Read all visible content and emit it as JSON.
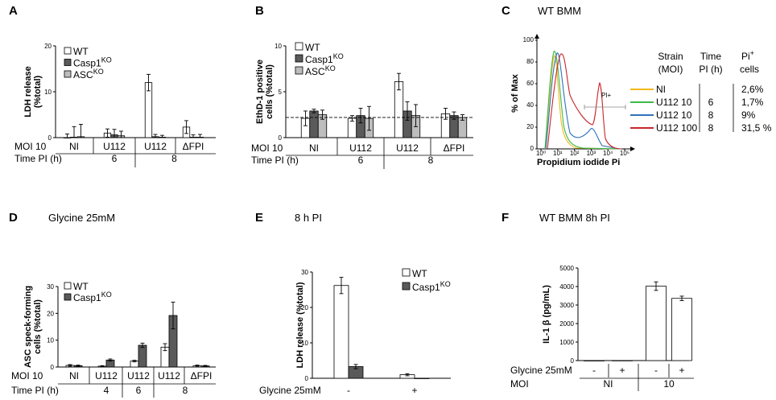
{
  "figure": {
    "panels": [
      {
        "id": "A",
        "letter": "A",
        "title": ""
      },
      {
        "id": "B",
        "letter": "B",
        "title": ""
      },
      {
        "id": "C",
        "letter": "C",
        "title": "WT BMM"
      },
      {
        "id": "D",
        "letter": "D",
        "title": "Glycine 25mM"
      },
      {
        "id": "E",
        "letter": "E",
        "title": "8 h PI"
      },
      {
        "id": "F",
        "letter": "F",
        "title": "WT BMM 8h PI"
      }
    ]
  },
  "colors": {
    "wt": "#ffffff",
    "casp": "#5a5a5a",
    "asc": "#bdbdbd",
    "ni": "#f2b91c",
    "u112_10_6": "#3cba4a",
    "u112_10_8": "#2f72b8",
    "u112_100_8": "#c8262b"
  },
  "chart_data": [
    {
      "panel": "A",
      "type": "bar",
      "ylabel": "LDH release (%total)",
      "ylim": [
        0,
        20
      ],
      "yticks": [
        0,
        10,
        20
      ],
      "row_labels": [
        "MOI 10",
        "Time PI (h)"
      ],
      "categories": [
        "NI",
        "U112",
        "U112",
        "ΔFPI"
      ],
      "time_groups": [
        {
          "label": "6",
          "span": [
            1,
            1
          ]
        },
        {
          "label": "8",
          "span": [
            2,
            3
          ]
        }
      ],
      "series": [
        {
          "name": "WT",
          "key": "wt",
          "values": [
            0,
            1,
            12,
            2.3
          ],
          "errors": [
            0.8,
            0.9,
            1.8,
            1.4
          ]
        },
        {
          "name": "Casp1",
          "sup": "KO",
          "key": "casp",
          "values": [
            0.1,
            0.6,
            0.2,
            0.1
          ],
          "errors": [
            2.3,
            1.2,
            0.5,
            0.5
          ]
        },
        {
          "name": "ASC",
          "sup": "KO",
          "key": "asc",
          "values": [
            0.2,
            0.4,
            0.1,
            0.1
          ],
          "errors": [
            2.7,
            1.0,
            0.4,
            0.6
          ]
        }
      ]
    },
    {
      "panel": "B",
      "type": "bar",
      "ylabel": "EthD-1 positive cells (%total)",
      "ylim": [
        0,
        10
      ],
      "yticks": [
        0,
        5,
        10
      ],
      "row_labels": [
        "MOI 10",
        "Time PI (h)"
      ],
      "categories": [
        "NI",
        "U112",
        "U112",
        "ΔFPI"
      ],
      "time_groups": [
        {
          "label": "6",
          "span": [
            1,
            1
          ]
        },
        {
          "label": "8",
          "span": [
            2,
            3
          ]
        }
      ],
      "dashed_line": 2.2,
      "series": [
        {
          "name": "WT",
          "key": "wt",
          "values": [
            2.1,
            2.1,
            6.1,
            2.6
          ],
          "errors": [
            0.8,
            0.3,
            0.9,
            0.6
          ]
        },
        {
          "name": "Casp1",
          "sup": "KO",
          "key": "casp",
          "values": [
            2.9,
            2.4,
            2.9,
            2.4
          ],
          "errors": [
            0.2,
            0.8,
            1.0,
            0.4
          ]
        },
        {
          "name": "ASC",
          "sup": "KO",
          "key": "asc",
          "values": [
            2.5,
            2.1,
            2.4,
            2.2
          ],
          "errors": [
            0.5,
            1.3,
            1.2,
            0.3
          ]
        }
      ]
    },
    {
      "panel": "C",
      "type": "line",
      "xlabel": "Propidium iodide Pi",
      "ylabel": "% of Max",
      "yticks": [
        0,
        20,
        40,
        60,
        80,
        100
      ],
      "xticks": [
        "10⁰",
        "10¹",
        "10²",
        "10³",
        "10⁴",
        "10⁵"
      ],
      "gate_label": "PI+",
      "table": {
        "headers": [
          "Strain (MOI)",
          "Time PI (h)",
          "Pi",
          "cells"
        ],
        "header_sup": "+",
        "rows": [
          {
            "key": "ni",
            "strain": "NI",
            "time": "",
            "pct": "2,6%"
          },
          {
            "key": "u112_10_6",
            "strain": "U112 10",
            "time": "6",
            "pct": "1,7%"
          },
          {
            "key": "u112_10_8",
            "strain": "U112 10",
            "time": "8",
            "pct": "9%"
          },
          {
            "key": "u112_100_8",
            "strain": "U112 100",
            "time": "8",
            "pct": "31,5 %"
          }
        ]
      }
    },
    {
      "panel": "D",
      "type": "bar",
      "ylabel": "ASC speck-forming cells (%total)",
      "ylim": [
        0,
        30
      ],
      "yticks": [
        0,
        10,
        20,
        30
      ],
      "row_labels": [
        "MOI 10",
        "Time PI (h)"
      ],
      "categories": [
        "NI",
        "U112",
        "U112",
        "U112",
        "ΔFPI"
      ],
      "time_groups": [
        {
          "label": "4",
          "span": [
            1,
            1
          ]
        },
        {
          "label": "6",
          "span": [
            2,
            2
          ]
        },
        {
          "label": "8",
          "span": [
            3,
            4
          ]
        }
      ],
      "series": [
        {
          "name": "WT",
          "key": "wt",
          "values": [
            0.6,
            0.3,
            2.2,
            7.4,
            0.5
          ],
          "errors": [
            0.3,
            0.2,
            0.3,
            1.3,
            0.2
          ]
        },
        {
          "name": "Casp1",
          "sup": "KO",
          "key": "casp",
          "values": [
            0.5,
            2.6,
            8.1,
            19.2,
            0.4
          ],
          "errors": [
            0.2,
            0.4,
            0.8,
            5.0,
            0.2
          ]
        }
      ]
    },
    {
      "panel": "E",
      "type": "bar",
      "ylabel": "LDH release (%total)",
      "ylim": [
        0,
        30
      ],
      "yticks": [
        0,
        10,
        20,
        30
      ],
      "row_labels": [
        "Glycine 25mM"
      ],
      "categories": [
        "-",
        "+"
      ],
      "series": [
        {
          "name": "WT",
          "key": "wt",
          "values": [
            26.2,
            1.0
          ],
          "errors": [
            2.3,
            0.3
          ]
        },
        {
          "name": "Casp1",
          "sup": "KO",
          "key": "casp",
          "values": [
            3.3,
            0.0
          ],
          "errors": [
            0.6,
            0.0
          ]
        }
      ]
    },
    {
      "panel": "F",
      "type": "bar",
      "ylabel": "IL-1 β (pg/mL)",
      "ylim": [
        0,
        5000
      ],
      "yticks": [
        0,
        1000,
        2000,
        3000,
        4000,
        5000
      ],
      "row_labels": [
        "Glycine 25mM",
        "MOI"
      ],
      "categories": [
        "-",
        "+",
        "-",
        "+"
      ],
      "moi_groups": [
        {
          "label": "NI",
          "span": [
            0,
            1
          ]
        },
        {
          "label": "10",
          "span": [
            2,
            3
          ]
        }
      ],
      "series": [
        {
          "name": "IL-1β",
          "key": "wt",
          "values": [
            0,
            5,
            4020,
            3360
          ],
          "errors": [
            0,
            0,
            230,
            120
          ]
        }
      ]
    }
  ]
}
